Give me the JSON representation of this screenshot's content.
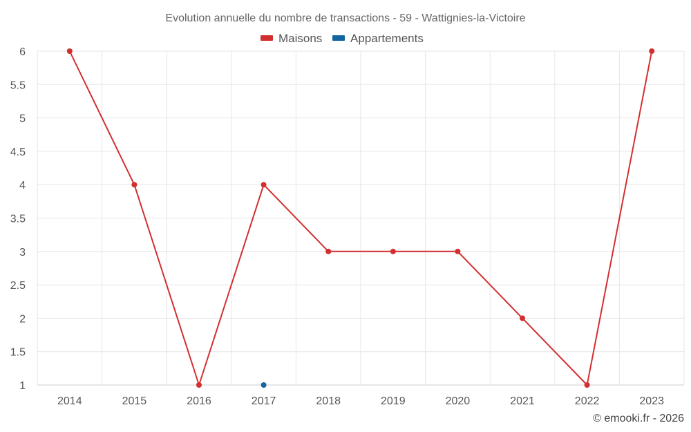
{
  "chart_data": {
    "type": "line",
    "title": "Evolution annuelle du nombre de transactions - 59 - Wattignies-la-Victoire",
    "categories": [
      "2014",
      "2015",
      "2016",
      "2017",
      "2018",
      "2019",
      "2020",
      "2021",
      "2022",
      "2023"
    ],
    "series": [
      {
        "name": "Maisons",
        "color": "#d32f2f",
        "values": [
          6,
          4,
          1,
          4,
          3,
          3,
          3,
          2,
          1,
          6
        ]
      },
      {
        "name": "Appartements",
        "color": "#1565a0",
        "values": [
          null,
          null,
          null,
          1,
          null,
          null,
          null,
          null,
          null,
          null
        ]
      }
    ],
    "yticks": [
      "1",
      "1.5",
      "2",
      "2.5",
      "3",
      "3.5",
      "4",
      "4.5",
      "5",
      "5.5",
      "6"
    ],
    "ylim": [
      1,
      6
    ],
    "grid": true,
    "legend_position": "top-center",
    "xlabel": "",
    "ylabel": ""
  },
  "credit": "© emooki.fr - 2026"
}
